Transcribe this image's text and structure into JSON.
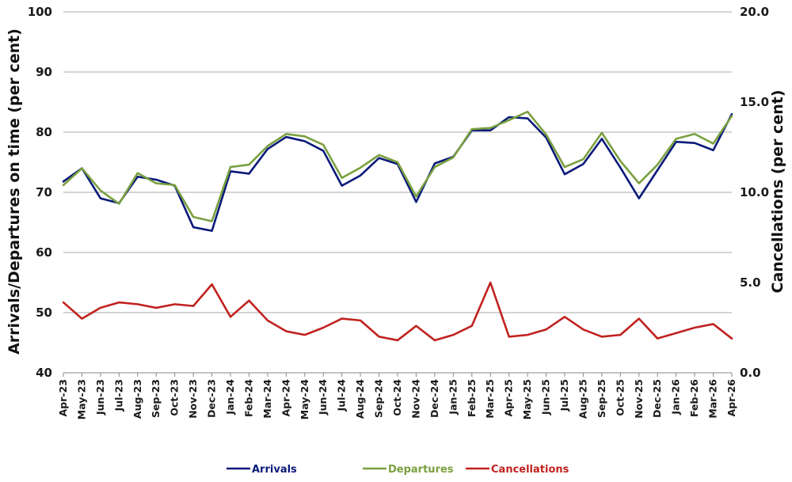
{
  "chart_data": {
    "type": "line",
    "ylabel_left": "Arrivals/Departures on time (per cent)",
    "ylabel_right": "Cancellations (per cent)",
    "ylim_left": [
      40,
      100
    ],
    "ylim_right": [
      0,
      20
    ],
    "yticks_left": [
      "40",
      "50",
      "60",
      "70",
      "80",
      "90",
      "100"
    ],
    "yticks_right": [
      "0.0",
      "5.0",
      "10.0",
      "15.0",
      "20.0"
    ],
    "grid": "horizontal",
    "legend_position": "bottom",
    "categories": [
      "Apr-23",
      "May-23",
      "Jun-23",
      "Jul-23",
      "Aug-23",
      "Sep-23",
      "Oct-23",
      "Nov-23",
      "Dec-23",
      "Jan-24",
      "Feb-24",
      "Mar-24",
      "Apr-24",
      "May-24",
      "Jun-24",
      "Jul-24",
      "Aug-24",
      "Sep-24",
      "Oct-24",
      "Nov-24",
      "Dec-24",
      "Jan-25",
      "Feb-25",
      "Mar-25",
      "Apr-25",
      "May-25",
      "Jun-25",
      "Jul-25",
      "Aug-25",
      "Sep-25",
      "Oct-25",
      "Nov-25",
      "Dec-25",
      "Jan-26",
      "Feb-26",
      "Mar-26",
      "Apr-26"
    ],
    "series": [
      {
        "name": "Arrivals",
        "axis": "left",
        "color": "#0a1a7a",
        "values": [
          71.8,
          74.0,
          69.0,
          68.2,
          72.6,
          72.1,
          71.1,
          64.2,
          63.6,
          73.5,
          73.1,
          77.2,
          79.2,
          78.5,
          76.9,
          71.1,
          72.8,
          75.7,
          74.7,
          68.4,
          74.8,
          75.9,
          80.3,
          80.3,
          82.5,
          82.3,
          79.1,
          73.0,
          74.7,
          78.9,
          74.1,
          69.0,
          73.7,
          78.4,
          78.2,
          77.0,
          83.0
        ]
      },
      {
        "name": "Departures",
        "axis": "left",
        "color": "#7aa040",
        "values": [
          71.2,
          74.0,
          70.3,
          68.1,
          73.2,
          71.5,
          71.2,
          65.9,
          65.2,
          74.2,
          74.6,
          77.7,
          79.7,
          79.3,
          77.9,
          72.4,
          74.1,
          76.2,
          75.0,
          69.3,
          74.2,
          75.8,
          80.5,
          80.7,
          82.0,
          83.4,
          79.6,
          74.2,
          75.5,
          79.9,
          75.2,
          71.5,
          74.6,
          78.9,
          79.7,
          78.1,
          82.7
        ]
      },
      {
        "name": "Cancellations",
        "axis": "right",
        "color": "#c0221f",
        "values": [
          3.9,
          3.0,
          3.6,
          3.9,
          3.8,
          3.6,
          3.8,
          3.7,
          4.9,
          3.1,
          4.0,
          2.9,
          2.3,
          2.1,
          2.5,
          3.0,
          2.9,
          2.0,
          1.8,
          2.6,
          1.8,
          2.1,
          2.6,
          5.0,
          2.0,
          2.1,
          2.4,
          3.1,
          2.4,
          2.0,
          2.1,
          3.0,
          1.9,
          2.2,
          2.5,
          2.7,
          1.9
        ]
      }
    ]
  }
}
